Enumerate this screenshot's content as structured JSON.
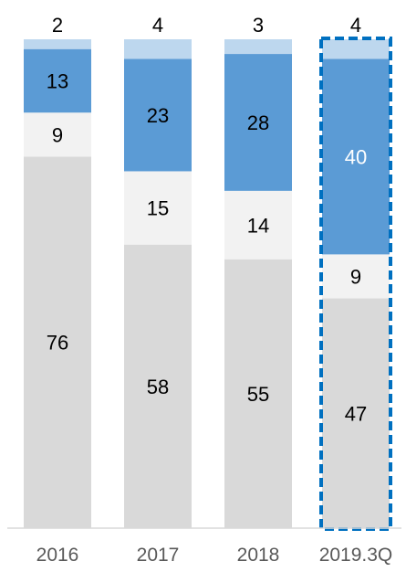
{
  "chart_data": {
    "type": "bar",
    "stacked": true,
    "categories": [
      "2016",
      "2017",
      "2018",
      "2019.3Q"
    ],
    "series": [
      {
        "values": [
          76,
          58,
          55,
          47
        ],
        "color": "#d9d9d9"
      },
      {
        "values": [
          9,
          15,
          14,
          9
        ],
        "color": "#f2f2f2"
      },
      {
        "values": [
          13,
          23,
          28,
          40
        ],
        "color": "#5b9bd5"
      },
      {
        "values": [
          2,
          4,
          3,
          4
        ],
        "color": "#bdd7ee"
      }
    ],
    "data_labels": [
      [
        "76",
        "58",
        "55",
        "47"
      ],
      [
        "9",
        "15",
        "14",
        "9"
      ],
      [
        "13",
        "23",
        "28",
        "40"
      ],
      [
        "2",
        "4",
        "3",
        "4"
      ]
    ],
    "highlight": {
      "category": "2019.3Q",
      "style": "dashed-border",
      "color": "#0070c0"
    },
    "title": "",
    "xlabel": "",
    "ylabel": "",
    "ylim": [
      0,
      100
    ],
    "grid": false,
    "legend": "none",
    "colors": {
      "axis_line": "#d9d9d9",
      "tick_label": "#595959",
      "label_dark": "#000000",
      "label_light": "#ffffff"
    }
  }
}
